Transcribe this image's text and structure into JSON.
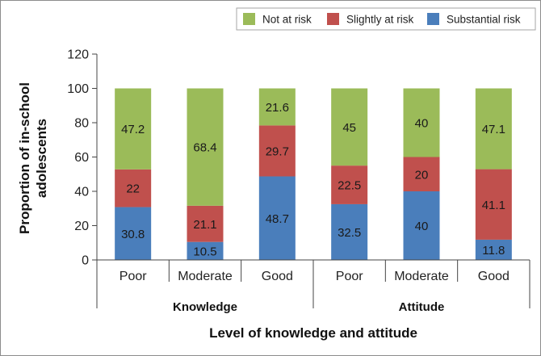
{
  "chart_data": {
    "type": "bar",
    "stacked": true,
    "title": "",
    "groups": [
      {
        "name": "Knowledge",
        "categories": [
          "Poor",
          "Moderate",
          "Good"
        ]
      },
      {
        "name": "Attitude",
        "categories": [
          "Poor",
          "Moderate",
          "Good"
        ]
      }
    ],
    "categories": [
      "Poor",
      "Moderate",
      "Good",
      "Poor",
      "Moderate",
      "Good"
    ],
    "series": [
      {
        "name": "Substantial risk",
        "color": "#4a7ebb",
        "values": [
          30.8,
          10.5,
          48.7,
          32.5,
          40,
          11.8
        ],
        "labels": [
          "30.8",
          "10.5",
          "48.7",
          "32.5",
          "40",
          "11.8"
        ]
      },
      {
        "name": "Slightly at risk",
        "color": "#c0504d",
        "values": [
          22,
          21.1,
          29.7,
          22.5,
          20,
          41.1
        ],
        "labels": [
          "22",
          "21.1",
          "29.7",
          "22.5",
          "20",
          "41.1"
        ]
      },
      {
        "name": "Not at risk",
        "color": "#9bbb59",
        "values": [
          47.2,
          68.4,
          21.6,
          45,
          40,
          47.1
        ],
        "labels": [
          "47.2",
          "68.4",
          "21.6",
          "45",
          "40",
          "47.1"
        ]
      }
    ],
    "legend_order": [
      "Not at risk",
      "Slightly at risk",
      "Substantial risk"
    ],
    "legend_position": "top-right",
    "xlabel": "Level of knowledge and attitude",
    "ylabel_lines": [
      "Proportion of in-school",
      "adolescents"
    ],
    "ylim": [
      0,
      120
    ],
    "yticks": [
      0,
      20,
      40,
      60,
      80,
      100,
      120
    ],
    "ytick_labels": [
      "0",
      "20",
      "40",
      "60",
      "80",
      "100",
      "120"
    ],
    "grid": false
  }
}
